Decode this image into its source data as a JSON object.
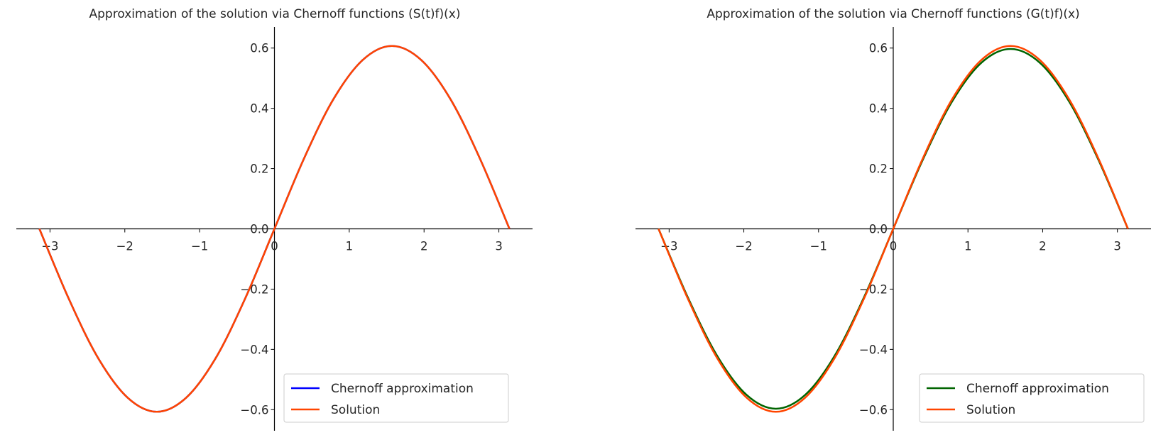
{
  "chart_data": [
    {
      "type": "line",
      "title": "Approximation of the solution via Chernoff functions (S(t)f)(x)",
      "xlabel": "",
      "ylabel": "",
      "xlim": [
        -3.45,
        3.45
      ],
      "ylim": [
        -0.67,
        0.67
      ],
      "xticks": [
        -3,
        -2,
        -1,
        0,
        1,
        2,
        3
      ],
      "xtick_labels": [
        "−3",
        "−2",
        "−1",
        "0",
        "1",
        "2",
        "3"
      ],
      "yticks": [
        -0.6,
        -0.4,
        -0.2,
        0.0,
        0.2,
        0.4,
        0.6
      ],
      "ytick_labels": [
        "−0.6",
        "−0.4",
        "−0.2",
        "0.0",
        "0.2",
        "0.4",
        "0.6"
      ],
      "axes_style": "spines through origin",
      "grid": false,
      "legend_position": "lower-right",
      "series": [
        {
          "name": "Chernoff approximation",
          "color": "#0000ff",
          "x": [
            -3.1416,
            -2.7489,
            -2.3562,
            -1.9635,
            -1.5708,
            -1.1781,
            -0.7854,
            -0.3927,
            0.0,
            0.3927,
            0.7854,
            1.1781,
            1.5708,
            1.9635,
            2.3562,
            2.7489,
            3.1416
          ],
          "y": [
            0.0,
            -0.232,
            -0.429,
            -0.56,
            -0.607,
            -0.56,
            -0.429,
            -0.232,
            0.0,
            0.232,
            0.429,
            0.56,
            0.607,
            0.56,
            0.429,
            0.232,
            0.0
          ]
        },
        {
          "name": "Solution",
          "color": "#ff4500",
          "x": [
            -3.1416,
            -2.7489,
            -2.3562,
            -1.9635,
            -1.5708,
            -1.1781,
            -0.7854,
            -0.3927,
            0.0,
            0.3927,
            0.7854,
            1.1781,
            1.5708,
            1.9635,
            2.3562,
            2.7489,
            3.1416
          ],
          "y": [
            0.0,
            -0.232,
            -0.429,
            -0.56,
            -0.607,
            -0.56,
            -0.429,
            -0.232,
            0.0,
            0.232,
            0.429,
            0.56,
            0.607,
            0.56,
            0.429,
            0.232,
            0.0
          ]
        }
      ]
    },
    {
      "type": "line",
      "title": "Approximation of the solution via Chernoff functions (G(t)f)(x)",
      "xlabel": "",
      "ylabel": "",
      "xlim": [
        -3.45,
        3.45
      ],
      "ylim": [
        -0.67,
        0.67
      ],
      "xticks": [
        -3,
        -2,
        -1,
        0,
        1,
        2,
        3
      ],
      "xtick_labels": [
        "−3",
        "−2",
        "−1",
        "0",
        "1",
        "2",
        "3"
      ],
      "yticks": [
        -0.6,
        -0.4,
        -0.2,
        0.0,
        0.2,
        0.4,
        0.6
      ],
      "ytick_labels": [
        "−0.6",
        "−0.4",
        "−0.2",
        "0.0",
        "0.2",
        "0.4",
        "0.6"
      ],
      "axes_style": "spines through origin",
      "grid": false,
      "legend_position": "lower-right",
      "series": [
        {
          "name": "Chernoff approximation",
          "color": "#006400",
          "x": [
            -3.1416,
            -2.7489,
            -2.3562,
            -1.9635,
            -1.5708,
            -1.1781,
            -0.7854,
            -0.3927,
            0.0,
            0.3927,
            0.7854,
            1.1781,
            1.5708,
            1.9635,
            2.3562,
            2.7489,
            3.1416
          ],
          "y": [
            0.0,
            -0.228,
            -0.422,
            -0.551,
            -0.597,
            -0.551,
            -0.422,
            -0.228,
            0.0,
            0.228,
            0.422,
            0.551,
            0.597,
            0.551,
            0.422,
            0.228,
            0.0
          ]
        },
        {
          "name": "Solution",
          "color": "#ff4500",
          "x": [
            -3.1416,
            -2.7489,
            -2.3562,
            -1.9635,
            -1.5708,
            -1.1781,
            -0.7854,
            -0.3927,
            0.0,
            0.3927,
            0.7854,
            1.1781,
            1.5708,
            1.9635,
            2.3562,
            2.7489,
            3.1416
          ],
          "y": [
            0.0,
            -0.232,
            -0.429,
            -0.56,
            -0.607,
            -0.56,
            -0.429,
            -0.232,
            0.0,
            0.232,
            0.429,
            0.56,
            0.607,
            0.56,
            0.429,
            0.232,
            0.0
          ]
        }
      ]
    }
  ]
}
